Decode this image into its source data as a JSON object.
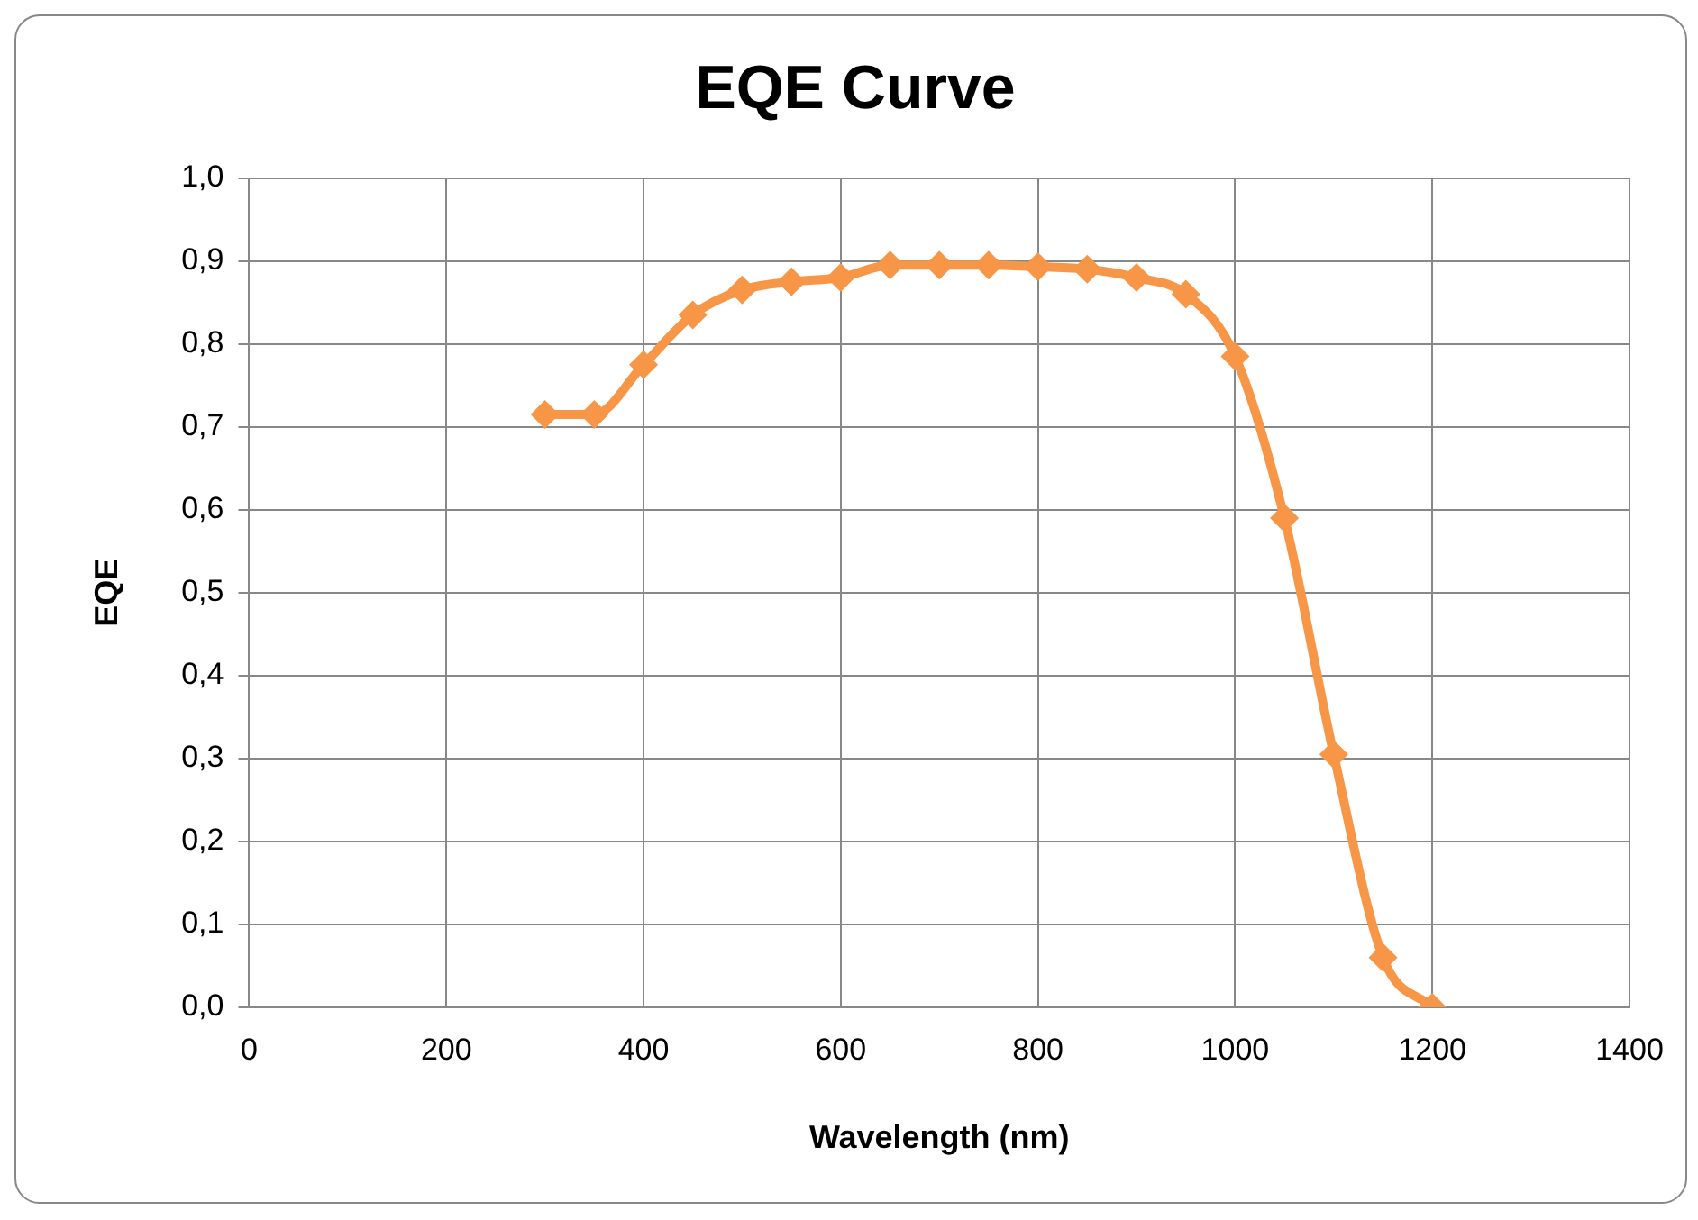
{
  "chart_data": {
    "type": "line",
    "title": "EQE Curve",
    "xlabel": "Wavelength (nm)",
    "ylabel": "EQE",
    "x": [
      300,
      350,
      400,
      450,
      500,
      550,
      600,
      650,
      700,
      750,
      800,
      850,
      900,
      950,
      1000,
      1050,
      1100,
      1150,
      1200
    ],
    "series": [
      {
        "color": "#f79646",
        "values": [
          0.715,
          0.715,
          0.775,
          0.835,
          0.865,
          0.875,
          0.88,
          0.895,
          0.895,
          0.895,
          0.893,
          0.89,
          0.88,
          0.86,
          0.785,
          0.59,
          0.305,
          0.06,
          0.0
        ]
      }
    ],
    "xlim": [
      0,
      1400
    ],
    "xticks": [
      0,
      200,
      400,
      600,
      800,
      1000,
      1200,
      1400
    ],
    "ylim": [
      0,
      1
    ],
    "yticks": [
      {
        "value": 0,
        "label": "0,0"
      },
      {
        "value": 0.1,
        "label": "0,1"
      },
      {
        "value": 0.2,
        "label": "0,2"
      },
      {
        "value": 0.3,
        "label": "0,3"
      },
      {
        "value": 0.4,
        "label": "0,4"
      },
      {
        "value": 0.5,
        "label": "0,5"
      },
      {
        "value": 0.6,
        "label": "0,6"
      },
      {
        "value": 0.7,
        "label": "0,7"
      },
      {
        "value": 0.8,
        "label": "0,8"
      },
      {
        "value": 0.9,
        "label": "0,9"
      },
      {
        "value": 1,
        "label": "1,0"
      }
    ],
    "grid": true,
    "legend": false,
    "marker": "diamond",
    "line_style": "solid"
  }
}
